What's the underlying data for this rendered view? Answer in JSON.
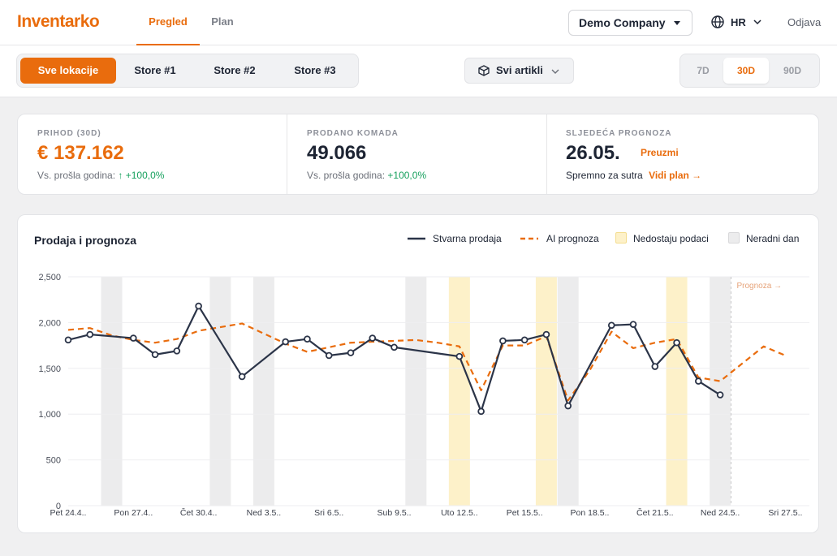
{
  "app": {
    "logo": "Inventarko",
    "nav_tabs": [
      {
        "label": "Pregled",
        "active": true
      },
      {
        "label": "Plan",
        "active": false
      }
    ],
    "company": "Demo Company",
    "language": "HR",
    "logout": "Odjava"
  },
  "filters": {
    "locations": [
      {
        "label": "Sve lokacije",
        "active": true
      },
      {
        "label": "Store #1",
        "active": false
      },
      {
        "label": "Store #2",
        "active": false
      },
      {
        "label": "Store #3",
        "active": false
      }
    ],
    "articles": "Svi artikli",
    "ranges": [
      {
        "label": "7D",
        "active": false
      },
      {
        "label": "30D",
        "active": true
      },
      {
        "label": "90D",
        "active": false
      }
    ]
  },
  "kpis": {
    "revenue": {
      "label": "PRIHOD (30D)",
      "value": "€ 137.162",
      "sub_prefix": "Vs. prošla godina:",
      "change": "↑ +100,0%"
    },
    "units": {
      "label": "PRODANO KOMADA",
      "value": "49.066",
      "sub_prefix": "Vs. prošla godina:",
      "change": "+100,0%"
    },
    "forecast": {
      "label": "SLJEDEĆA PROGNOZA",
      "value": "26.05.",
      "download": "Preuzmi",
      "sub_prefix": "Spremno za sutra",
      "link": "Vidi plan →"
    }
  },
  "chart": {
    "title": "Prodaja i prognoza",
    "legend": {
      "actual": "Stvarna prodaja",
      "forecast": "AI prognoza",
      "missing": "Nedostaju podaci",
      "nonworking": "Neradni dan"
    },
    "forecast_marker": "Prognoza →"
  },
  "colors": {
    "accent": "#e96c0d",
    "actual_line": "#2b3448",
    "missing_band": "#fdf1c9",
    "nonworking_band": "#ececed",
    "positive": "#16a05d"
  },
  "chart_data": {
    "type": "line",
    "x_tick_labels": [
      "Pet 24.4..",
      "Pon 27.4..",
      "Čet 30.4..",
      "Ned 3.5..",
      "Sri 6.5..",
      "Sub 9.5..",
      "Uto 12.5..",
      "Pet 15.5..",
      "Pon 18.5..",
      "Čet 21.5..",
      "Ned 24.5..",
      "Sri 27.5.."
    ],
    "y_ticks": [
      0,
      500,
      1000,
      1500,
      2000,
      2500
    ],
    "y_tick_labels": [
      "0",
      "500",
      "1,000",
      "1,500",
      "2,000",
      "2,500"
    ],
    "ylim": [
      0,
      2500
    ],
    "day_count": 34,
    "series": [
      {
        "name": "Stvarna prodaja",
        "values": [
          1810,
          1870,
          null,
          1830,
          1650,
          1690,
          2180,
          null,
          1410,
          null,
          1790,
          1820,
          1640,
          1670,
          1830,
          1730,
          null,
          null,
          1630,
          1030,
          1800,
          1810,
          1870,
          1090,
          null,
          1970,
          1980,
          1520,
          1780,
          1360,
          1210
        ]
      },
      {
        "name": "AI prognoza",
        "values": [
          1920,
          1940,
          1860,
          1810,
          1780,
          1820,
          1910,
          1950,
          1990,
          1880,
          1770,
          1680,
          1730,
          1780,
          1790,
          1800,
          1810,
          1780,
          1740,
          1260,
          1750,
          1750,
          1850,
          1150,
          1480,
          1900,
          1720,
          1780,
          1820,
          1400,
          1360,
          1550,
          1740,
          1640
        ]
      }
    ],
    "missing_data_days": [
      18,
      22,
      28
    ],
    "nonworking_days": [
      2,
      7,
      9,
      16,
      23,
      30
    ],
    "forecast_start_day": 30.5
  }
}
